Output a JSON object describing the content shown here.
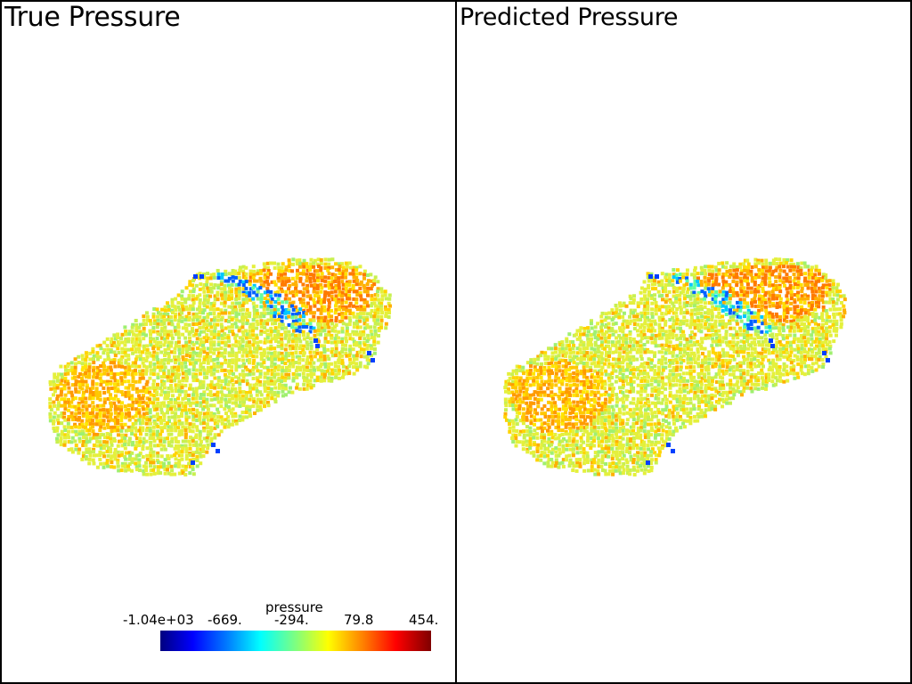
{
  "viewports": [
    {
      "id": "left",
      "title": "True Pressure"
    },
    {
      "id": "right",
      "title": "Predicted Pressure"
    }
  ],
  "colorbar": {
    "title": "pressure",
    "ticks": [
      "-1.04e+03",
      "-669.",
      "-294.",
      "79.8",
      "454."
    ],
    "colormap": "jet",
    "range": [
      -1040,
      454
    ]
  },
  "colors": {
    "background": "#ffffff",
    "border": "#000000",
    "dominant_surface": "#e8f03a",
    "high_pressure": "#ff8c1a",
    "low_pressure": "#0050ff"
  }
}
